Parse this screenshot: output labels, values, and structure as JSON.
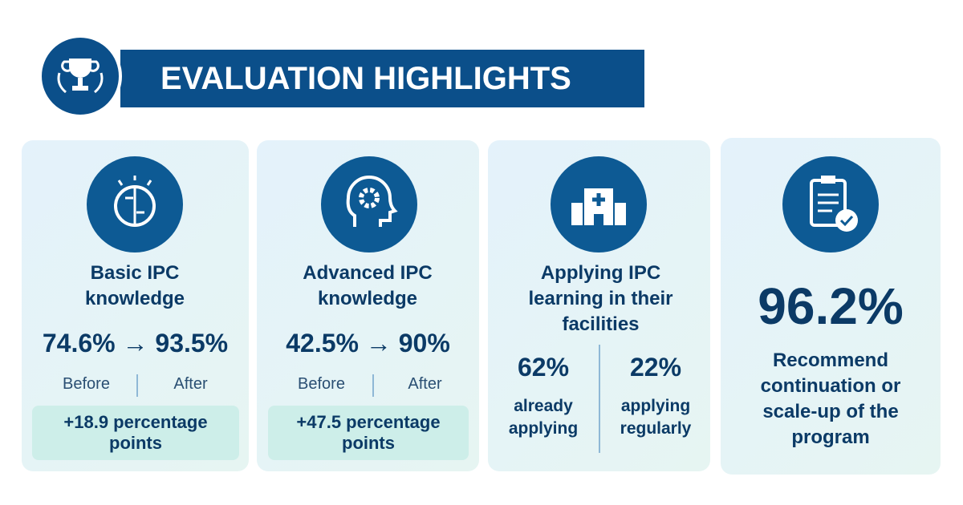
{
  "header": {
    "title": "EVALUATION HIGHLIGHTS"
  },
  "cards": [
    {
      "title": "Basic IPC knowledge",
      "stat": "74.6% → 93.5%",
      "before": "Before",
      "after": "After",
      "change": "+18.9 percentage points"
    },
    {
      "title": "Advanced IPC knowledge",
      "stat": "42.5% → 90%",
      "before": "Before",
      "after": "After",
      "change": "+47.5 percentage points"
    },
    {
      "title": "Applying IPC learning in their facilities",
      "left": {
        "value": "62%",
        "label": "already applying"
      },
      "right": {
        "value": "22%",
        "label": "applying regularly"
      }
    },
    {
      "value": "96.2%",
      "label": "Recommend continuation or scale-up of the program"
    }
  ]
}
